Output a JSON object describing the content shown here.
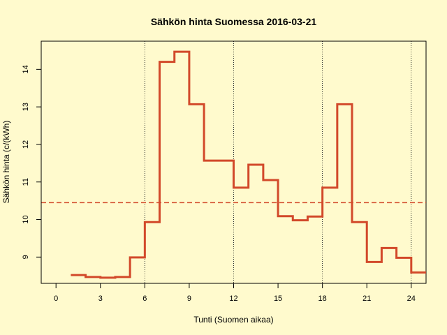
{
  "chart_data": {
    "type": "line",
    "title": "Sähkön hinta Suomessa 2016-03-21",
    "xlabel": "Tunti (Suomen aikaa)",
    "ylabel": "Sähkön hinta (c/(kWh)",
    "xlim": [
      -1,
      25
    ],
    "ylim": [
      8.3,
      14.75
    ],
    "x_ticks": [
      0,
      3,
      6,
      9,
      12,
      15,
      18,
      21,
      24
    ],
    "y_ticks": [
      9,
      10,
      11,
      12,
      13,
      14
    ],
    "vertical_lines": [
      6,
      12,
      18,
      24
    ],
    "mean_line": 10.45,
    "series": [
      {
        "step": "post",
        "color": "#d2492a",
        "x": [
          1,
          2,
          3,
          4,
          5,
          6,
          7,
          8,
          9,
          10,
          11,
          12,
          13,
          14,
          15,
          16,
          17,
          18,
          19,
          20,
          21,
          22,
          23,
          24
        ],
        "values": [
          8.52,
          8.47,
          8.45,
          8.47,
          8.99,
          9.93,
          14.2,
          14.47,
          13.07,
          11.57,
          11.57,
          10.85,
          11.46,
          11.05,
          10.09,
          9.98,
          10.08,
          10.85,
          13.07,
          9.93,
          8.87,
          9.24,
          8.98,
          8.59
        ]
      }
    ],
    "grid": false,
    "legend": "none"
  }
}
